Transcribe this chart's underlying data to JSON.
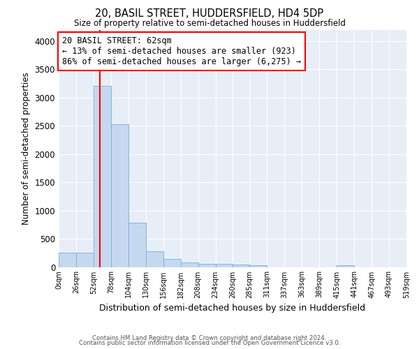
{
  "title": "20, BASIL STREET, HUDDERSFIELD, HD4 5DP",
  "subtitle": "Size of property relative to semi-detached houses in Huddersfield",
  "xlabel": "Distribution of semi-detached houses by size in Huddersfield",
  "ylabel": "Number of semi-detached properties",
  "bar_color": "#c5d8f0",
  "bar_edge_color": "#7aadd4",
  "background_color": "#e8eef8",
  "grid_color": "white",
  "property_value": 62,
  "property_line_color": "red",
  "annotation_text_line1": "20 BASIL STREET: 62sqm",
  "annotation_text_line2": "← 13% of semi-detached houses are smaller (923)",
  "annotation_text_line3": "86% of semi-detached houses are larger (6,275) →",
  "annotation_box_color": "white",
  "annotation_box_edge_color": "red",
  "bin_edges": [
    0,
    26,
    52,
    78,
    104,
    130,
    156,
    182,
    208,
    234,
    260,
    285,
    311,
    337,
    363,
    389,
    415,
    441,
    467,
    493,
    519
  ],
  "bar_heights": [
    255,
    255,
    3200,
    2530,
    790,
    280,
    145,
    80,
    55,
    50,
    40,
    30,
    0,
    0,
    0,
    0,
    30,
    0,
    0,
    0
  ],
  "ylim": [
    0,
    4200
  ],
  "yticks": [
    0,
    500,
    1000,
    1500,
    2000,
    2500,
    3000,
    3500,
    4000
  ],
  "xlim": [
    0,
    519
  ],
  "tick_labels": [
    "0sqm",
    "26sqm",
    "52sqm",
    "78sqm",
    "104sqm",
    "130sqm",
    "156sqm",
    "182sqm",
    "208sqm",
    "234sqm",
    "260sqm",
    "285sqm",
    "311sqm",
    "337sqm",
    "363sqm",
    "389sqm",
    "415sqm",
    "441sqm",
    "467sqm",
    "493sqm",
    "519sqm"
  ],
  "footer_line1": "Contains HM Land Registry data © Crown copyright and database right 2024.",
  "footer_line2": "Contains public sector information licensed under the Open Government Licence v3.0."
}
